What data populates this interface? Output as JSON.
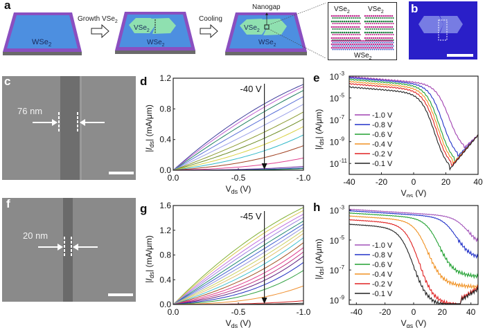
{
  "figure": {
    "panels": {
      "a": {
        "letter": "a",
        "step1_label": "WSe",
        "step1_sub": "2",
        "arrow1_label": "Growth VSe",
        "arrow1_sub": "2",
        "step2_flake_label": "VSe",
        "step2_flake_sub": "2",
        "step2_substrate_label": "WSe",
        "step2_substrate_sub": "2",
        "arrow2_label": "Cooling",
        "step3_annotation": "Nanogap",
        "step3_flake_label": "VSe",
        "step3_flake_sub": "2",
        "step3_substrate_label": "WSe",
        "step3_substrate_sub": "2",
        "inset_left_label": "VSe",
        "inset_right_label": "VSe",
        "inset_bottom_label": "WSe",
        "inset_sub": "2"
      },
      "b": {
        "letter": "b"
      },
      "c": {
        "letter": "c",
        "gap_label": "76 nm"
      },
      "f": {
        "letter": "f",
        "gap_label": "20 nm"
      }
    },
    "colors": {
      "substrate_purple": "#8a4fc0",
      "wse2_blue": "#4d8fe0",
      "vse2_green": "#8fe0b0",
      "optical_bg": "#2a1fc8",
      "sem_gray": "#8c8c8c"
    }
  },
  "chart_data": [
    {
      "id": "d",
      "letter": "d",
      "type": "line",
      "xlabel": "V",
      "xlabel_sub": "ds",
      "xlabel_unit": " (V)",
      "ylabel": "|I",
      "ylabel_sub": "ds",
      "ylabel_unit": "| (mA/μm)",
      "xlim": [
        0.0,
        -1.0
      ],
      "ylim": [
        0.0,
        1.2
      ],
      "xticks": [
        "0.0",
        "-0.5",
        "-1.0"
      ],
      "xtick_values": [
        0.0,
        -0.5,
        -1.0
      ],
      "yticks": [
        "0.0",
        "0.4",
        "0.8",
        "1.2"
      ],
      "ytick_values": [
        0.0,
        0.4,
        0.8,
        1.2
      ],
      "annotation": "-40 V",
      "annotation_x": -0.7,
      "curve_colors": [
        "#3a3a9a",
        "#c060d0",
        "#208060",
        "#5a70d8",
        "#9aa0e8",
        "#8a9a30",
        "#6a8a20",
        "#d8d040",
        "#30b8c8",
        "#a04020",
        "#e04090",
        "#7030a0",
        "#2040c0",
        "#208040"
      ],
      "curve_endpoints": [
        1.12,
        1.09,
        1.04,
        0.96,
        0.86,
        0.76,
        0.67,
        0.57,
        0.46,
        0.32,
        0.16,
        0.05,
        0.03,
        0.02
      ]
    },
    {
      "id": "e",
      "letter": "e",
      "type": "line",
      "yscale": "log",
      "xlabel": "V",
      "xlabel_sub": "gs",
      "xlabel_unit": " (V)",
      "ylabel": "|I",
      "ylabel_sub": "ds",
      "ylabel_unit": "| (A/μm)",
      "xlim": [
        -40,
        40
      ],
      "ylim_exp": [
        -12,
        -3
      ],
      "xticks": [
        "-40",
        "-20",
        "0",
        "20",
        "40"
      ],
      "xtick_values": [
        -40,
        -20,
        0,
        20,
        40
      ],
      "yticks": [
        "10",
        "10",
        "10",
        "10",
        "10"
      ],
      "ytick_exps": [
        "-3",
        "-5",
        "-7",
        "-9",
        "-11"
      ],
      "legend_position": "bottom-left",
      "series": [
        {
          "name": "-1.0 V",
          "color": "#a040b0",
          "plateau": -3.05,
          "vmin": 31,
          "logmin": -9.6
        },
        {
          "name": "-0.8 V",
          "color": "#2030c8",
          "plateau": -3.15,
          "vmin": 27,
          "logmin": -10.4
        },
        {
          "name": "-0.6 V",
          "color": "#20a030",
          "plateau": -3.3,
          "vmin": 25,
          "logmin": -10.9
        },
        {
          "name": "-0.4 V",
          "color": "#f09020",
          "plateau": -3.5,
          "vmin": 24,
          "logmin": -11.1
        },
        {
          "name": "-0.2 V",
          "color": "#e02020",
          "plateau": -3.7,
          "vmin": 23,
          "logmin": -11.3
        },
        {
          "name": "-0.1 V",
          "color": "#202020",
          "plateau": -4.0,
          "vmin": 22,
          "logmin": -11.6
        }
      ]
    },
    {
      "id": "g",
      "letter": "g",
      "type": "line",
      "xlabel": "V",
      "xlabel_sub": "ds",
      "xlabel_unit": " (V)",
      "ylabel": "|I",
      "ylabel_sub": "ds",
      "ylabel_unit": "| (mA/μm)",
      "xlim": [
        0.0,
        -1.0
      ],
      "ylim": [
        0.0,
        1.6
      ],
      "xticks": [
        "0.0",
        "-0.5",
        "-1.0"
      ],
      "xtick_values": [
        0.0,
        -0.5,
        -1.0
      ],
      "yticks": [
        "0.0",
        "0.4",
        "0.8",
        "1.2",
        "1.6"
      ],
      "ytick_values": [
        0.0,
        0.4,
        0.8,
        1.2,
        1.6
      ],
      "annotation": "-45 V",
      "annotation_x": -0.7,
      "curve_colors": [
        "#80b030",
        "#d8c850",
        "#c070e0",
        "#a080e0",
        "#208870",
        "#4060d0",
        "#9090e0",
        "#c8d060",
        "#e0c070",
        "#40c0d0",
        "#a05020",
        "#e04090",
        "#c03080",
        "#602080",
        "#2030c0",
        "#30a040",
        "#f09030",
        "#d02020",
        "#202020"
      ],
      "curve_endpoints": [
        1.57,
        1.52,
        1.46,
        1.41,
        1.35,
        1.3,
        1.25,
        1.2,
        1.15,
        1.08,
        1.0,
        0.92,
        0.85,
        0.78,
        0.68,
        0.55,
        0.3,
        0.06,
        0.02
      ]
    },
    {
      "id": "h",
      "letter": "h",
      "type": "line",
      "yscale": "log",
      "xlabel": "V",
      "xlabel_sub": "gs",
      "xlabel_unit": " (V)",
      "ylabel": "|I",
      "ylabel_sub": "ds",
      "ylabel_unit": "| (A/μm)",
      "xlim": [
        -45,
        45
      ],
      "ylim_exp": [
        -9.3,
        -2.7
      ],
      "xticks": [
        "-40",
        "-20",
        "0",
        "20",
        "40"
      ],
      "xtick_values": [
        -40,
        -20,
        0,
        20,
        40
      ],
      "yticks": [
        "10",
        "10",
        "10",
        "10"
      ],
      "ytick_exps": [
        "-3",
        "-5",
        "-7",
        "-9"
      ],
      "legend_position": "bottom-left",
      "series": [
        {
          "name": "-1.0 V",
          "color": "#a050b8",
          "plateau": -2.95,
          "drop_v": 38,
          "tail": -4.9
        },
        {
          "name": "-0.8 V",
          "color": "#2030c8",
          "plateau": -3.05,
          "drop_v": 30,
          "tail": -5.7
        },
        {
          "name": "-0.6 V",
          "color": "#20a030",
          "plateau": -3.2,
          "drop_v": 18,
          "tail": -6.9
        },
        {
          "name": "-0.4 V",
          "color": "#f09020",
          "plateau": -3.4,
          "drop_v": 10,
          "tail": -7.6
        },
        {
          "name": "-0.2 V",
          "color": "#e02020",
          "plateau": -3.65,
          "drop_v": 4,
          "tail": -8.9
        },
        {
          "name": "-0.1 V",
          "color": "#202020",
          "plateau": -3.95,
          "drop_v": 0,
          "tail": -9.0
        }
      ]
    }
  ]
}
